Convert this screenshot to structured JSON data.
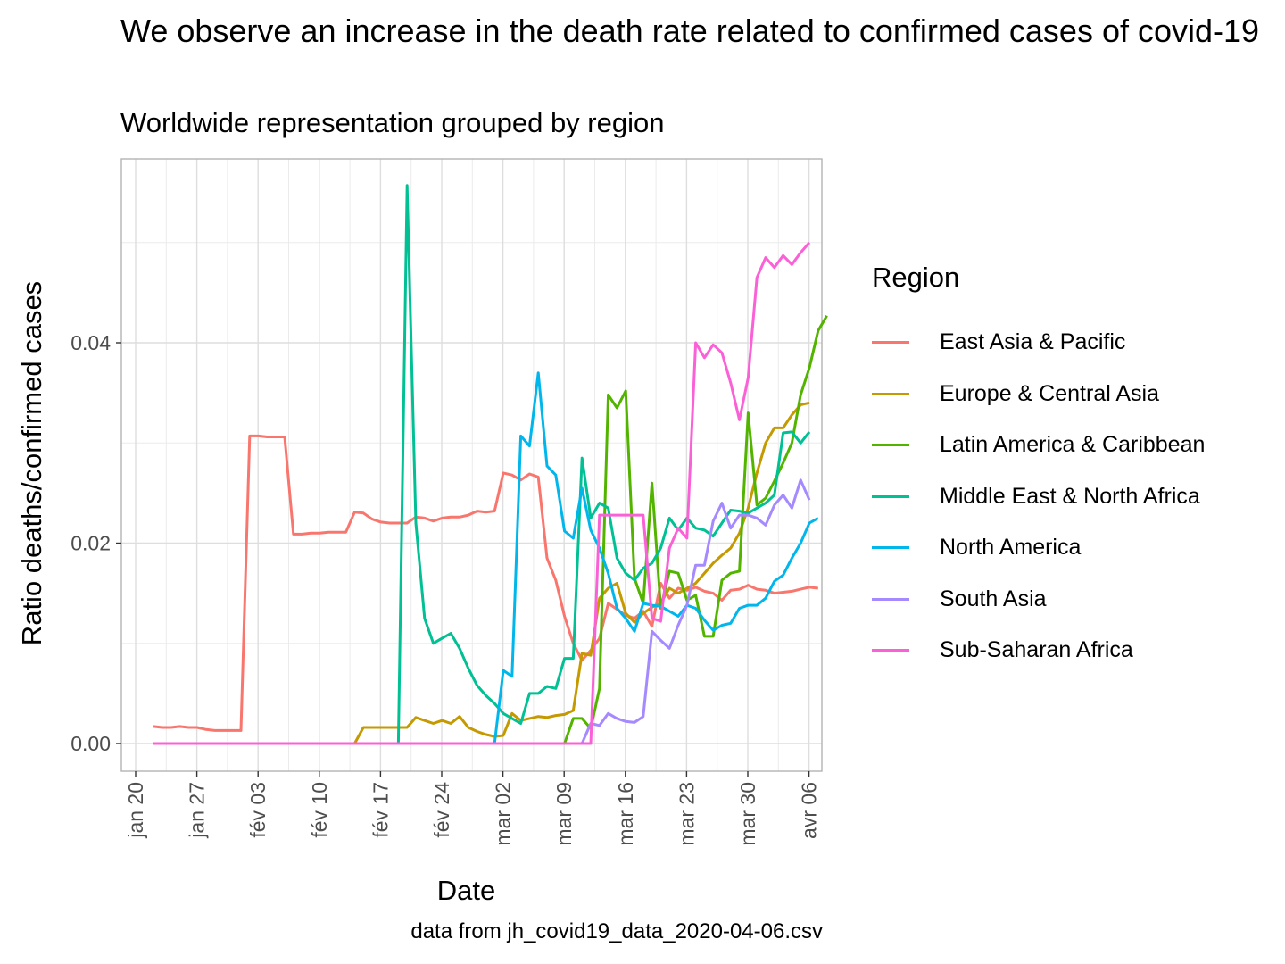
{
  "chart_data": {
    "type": "line",
    "title": "We observe an increase in the death rate related to confirmed cases of covid-19",
    "subtitle": "Worldwide representation grouped by region",
    "caption": "data from jh_covid19_data_2020-04-06.csv",
    "xlabel": "Date",
    "ylabel": "Ratio deaths/confirmed cases",
    "x_start": "2020-01-22",
    "x_ticks": [
      "jan 20",
      "jan 27",
      "fév 03",
      "fév 10",
      "fév 17",
      "fév 24",
      "mar 02",
      "mar 09",
      "mar 16",
      "mar 23",
      "mar 30",
      "avr 06"
    ],
    "y_ticks": [
      "0.00",
      "0.02",
      "0.04"
    ],
    "ylim": [
      -0.0028,
      0.058
    ],
    "grid": true,
    "legend_title": "Region",
    "legend_position": "right",
    "series": [
      {
        "name": "East Asia & Pacific",
        "color": "#F8766D",
        "values": [
          0.0017,
          0.0016,
          0.0016,
          0.0017,
          0.0016,
          0.0016,
          0.0014,
          0.0013,
          0.0013,
          0.0013,
          0.0013,
          0.0307,
          0.0307,
          0.0306,
          0.0306,
          0.0306,
          0.0209,
          0.0209,
          0.021,
          0.021,
          0.0211,
          0.0211,
          0.0211,
          0.0231,
          0.023,
          0.0224,
          0.0221,
          0.022,
          0.022,
          0.022,
          0.0226,
          0.0225,
          0.0222,
          0.0225,
          0.0226,
          0.0226,
          0.0228,
          0.0232,
          0.0231,
          0.0232,
          0.027,
          0.0268,
          0.0263,
          0.0269,
          0.0266,
          0.0185,
          0.0163,
          0.0127,
          0.01,
          0.0083,
          0.0093,
          0.0105,
          0.014,
          0.0134,
          0.0128,
          0.0125,
          0.0132,
          0.0117,
          0.016,
          0.0145,
          0.0155,
          0.0153,
          0.0156,
          0.0152,
          0.015,
          0.0143,
          0.0153,
          0.0154,
          0.0158,
          0.0154,
          0.0153,
          0.015,
          0.0151,
          0.0152,
          0.0154,
          0.0156,
          0.0155
        ]
      },
      {
        "name": "Europe & Central Asia",
        "color": "#C49A00",
        "values": [
          0,
          0,
          0,
          0,
          0,
          0,
          0,
          0,
          0,
          0,
          0,
          0,
          0,
          0,
          0,
          0,
          0,
          0,
          0,
          0,
          0,
          0,
          0,
          0,
          0.0016,
          0.0016,
          0.0016,
          0.0016,
          0.0016,
          0.0016,
          0.0026,
          0.0023,
          0.002,
          0.0023,
          0.002,
          0.0027,
          0.0016,
          0.0012,
          0.0009,
          0.0007,
          0.0008,
          0.003,
          0.0023,
          0.0025,
          0.0027,
          0.0026,
          0.0028,
          0.0029,
          0.0033,
          0.009,
          0.0088,
          0.0145,
          0.0155,
          0.016,
          0.013,
          0.0121,
          0.013,
          0.0136,
          0.014,
          0.0155,
          0.015,
          0.0155,
          0.016,
          0.017,
          0.018,
          0.0188,
          0.0195,
          0.021,
          0.0235,
          0.027,
          0.03,
          0.0315,
          0.0315,
          0.0328,
          0.0338,
          0.034
        ]
      },
      {
        "name": "Latin America & Caribbean",
        "color": "#53B400",
        "values": [
          0,
          0,
          0,
          0,
          0,
          0,
          0,
          0,
          0,
          0,
          0,
          0,
          0,
          0,
          0,
          0,
          0,
          0,
          0,
          0,
          0,
          0,
          0,
          0,
          0,
          0,
          0,
          0,
          0,
          0,
          0,
          0,
          0,
          0,
          0,
          0,
          0,
          0,
          0,
          0,
          0,
          0,
          0,
          0,
          0,
          0,
          0,
          0,
          0.0025,
          0.0025,
          0.0015,
          0.0055,
          0.0348,
          0.0335,
          0.0352,
          0.0165,
          0.014,
          0.026,
          0.0135,
          0.0172,
          0.017,
          0.0143,
          0.0148,
          0.0107,
          0.0107,
          0.0163,
          0.017,
          0.0172,
          0.033,
          0.0238,
          0.0245,
          0.0262,
          0.028,
          0.03,
          0.0348,
          0.0375,
          0.0412,
          0.0427
        ]
      },
      {
        "name": "Middle East & North Africa",
        "color": "#00C094",
        "values": [
          0,
          0,
          0,
          0,
          0,
          0,
          0,
          0,
          0,
          0,
          0,
          0,
          0,
          0,
          0,
          0,
          0,
          0,
          0,
          0,
          0,
          0,
          0,
          0,
          0,
          0,
          0,
          0,
          0,
          0.0557,
          0.022,
          0.0125,
          0.01,
          0.0105,
          0.011,
          0.0095,
          0.0075,
          0.0058,
          0.0048,
          0.004,
          0.003,
          0.0025,
          0.002,
          0.005,
          0.005,
          0.0057,
          0.0055,
          0.0085,
          0.0085,
          0.0285,
          0.0225,
          0.024,
          0.0235,
          0.0185,
          0.017,
          0.0163,
          0.0175,
          0.018,
          0.0195,
          0.0225,
          0.0213,
          0.0225,
          0.0215,
          0.0213,
          0.0207,
          0.022,
          0.0233,
          0.0232,
          0.023,
          0.0235,
          0.024,
          0.0248,
          0.031,
          0.0311,
          0.03,
          0.0311
        ]
      },
      {
        "name": "North America",
        "color": "#00B6EB",
        "values": [
          0,
          0,
          0,
          0,
          0,
          0,
          0,
          0,
          0,
          0,
          0,
          0,
          0,
          0,
          0,
          0,
          0,
          0,
          0,
          0,
          0,
          0,
          0,
          0,
          0,
          0,
          0,
          0,
          0,
          0,
          0,
          0,
          0,
          0,
          0,
          0,
          0,
          0,
          0,
          0,
          0.0073,
          0.0067,
          0.0307,
          0.0297,
          0.037,
          0.0277,
          0.0268,
          0.0212,
          0.0205,
          0.0255,
          0.0213,
          0.0195,
          0.017,
          0.0135,
          0.0125,
          0.0112,
          0.014,
          0.0138,
          0.0137,
          0.0132,
          0.0127,
          0.0138,
          0.0135,
          0.0123,
          0.0113,
          0.0118,
          0.012,
          0.0135,
          0.0138,
          0.0138,
          0.0145,
          0.0162,
          0.0168,
          0.0185,
          0.02,
          0.022,
          0.0225
        ]
      },
      {
        "name": "South Asia",
        "color": "#A58AFF",
        "values": [
          0,
          0,
          0,
          0,
          0,
          0,
          0,
          0,
          0,
          0,
          0,
          0,
          0,
          0,
          0,
          0,
          0,
          0,
          0,
          0,
          0,
          0,
          0,
          0,
          0,
          0,
          0,
          0,
          0,
          0,
          0,
          0,
          0,
          0,
          0,
          0,
          0,
          0,
          0,
          0,
          0,
          0,
          0,
          0,
          0,
          0,
          0,
          0,
          0,
          0,
          0.002,
          0.0018,
          0.003,
          0.0025,
          0.0022,
          0.0021,
          0.0027,
          0.0112,
          0.0103,
          0.0095,
          0.0118,
          0.0138,
          0.0178,
          0.0178,
          0.0222,
          0.024,
          0.0215,
          0.0228,
          0.0228,
          0.0225,
          0.0218,
          0.0238,
          0.0248,
          0.0235,
          0.0263,
          0.0243
        ]
      },
      {
        "name": "Sub-Saharan Africa",
        "color": "#FB61D7",
        "values": [
          0,
          0,
          0,
          0,
          0,
          0,
          0,
          0,
          0,
          0,
          0,
          0,
          0,
          0,
          0,
          0,
          0,
          0,
          0,
          0,
          0,
          0,
          0,
          0,
          0,
          0,
          0,
          0,
          0,
          0,
          0,
          0,
          0,
          0,
          0,
          0,
          0,
          0,
          0,
          0,
          0,
          0,
          0,
          0,
          0,
          0,
          0,
          0,
          0,
          0,
          0,
          0.0228,
          0.0228,
          0.0228,
          0.0228,
          0.0228,
          0.0228,
          0.0125,
          0.0122,
          0.0195,
          0.0215,
          0.0205,
          0.04,
          0.0385,
          0.0398,
          0.039,
          0.036,
          0.0323,
          0.0365,
          0.0465,
          0.0485,
          0.0475,
          0.0487,
          0.0478,
          0.049,
          0.05
        ]
      }
    ]
  }
}
